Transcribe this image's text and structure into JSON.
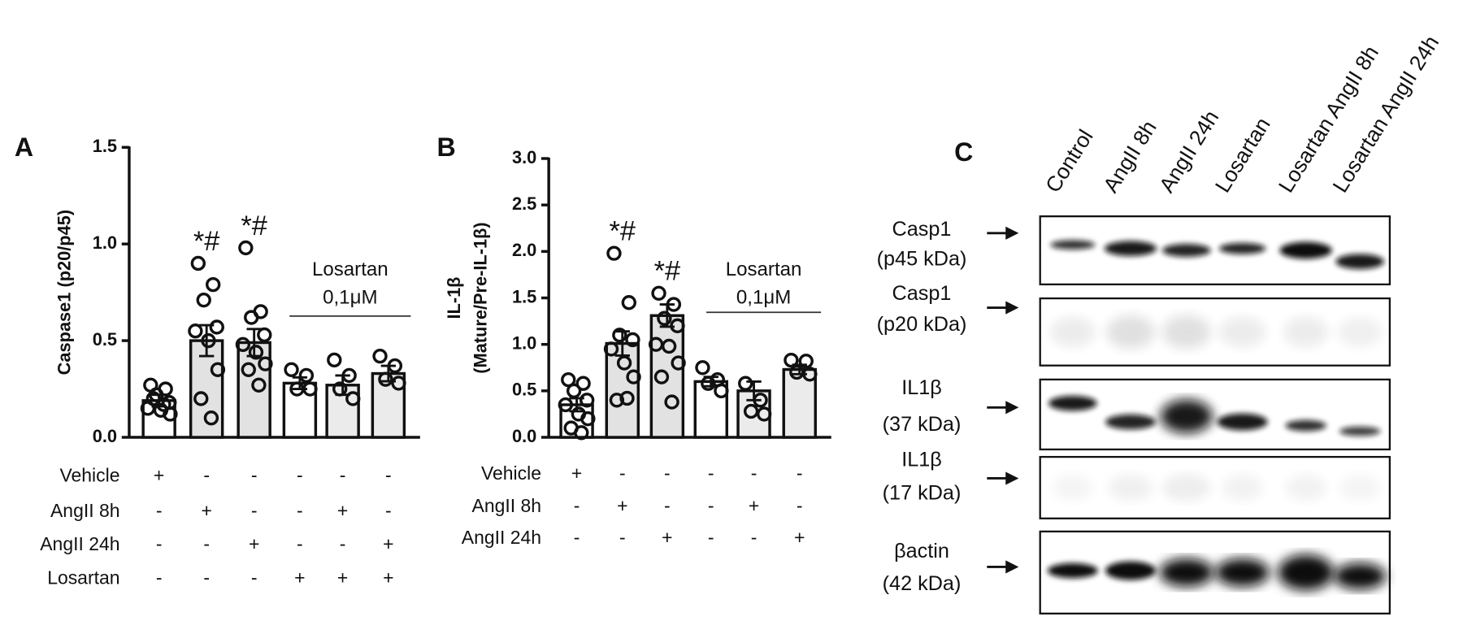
{
  "chart_data": [
    {
      "type": "bar",
      "panel": "A",
      "ylabel": [
        "Caspase1 (p20/p45)"
      ],
      "categories": [
        null,
        null,
        null,
        null,
        null,
        null
      ],
      "values": [
        0.19,
        0.5,
        0.49,
        0.28,
        0.27,
        0.33
      ],
      "errors": [
        0.03,
        0.08,
        0.07,
        0.03,
        0.05,
        0.04
      ],
      "points": [
        [
          0.27,
          0.25,
          0.22,
          0.18,
          0.15,
          0.14,
          0.12,
          0.2,
          0.17
        ],
        [
          0.9,
          0.79,
          0.71,
          0.57,
          0.55,
          0.5,
          0.35,
          0.2,
          0.1
        ],
        [
          0.98,
          0.65,
          0.62,
          0.53,
          0.48,
          0.44,
          0.38,
          0.35,
          0.27
        ],
        [
          0.35,
          0.32,
          0.25,
          0.25
        ],
        [
          0.4,
          0.32,
          0.25,
          0.2
        ],
        [
          0.42,
          0.37,
          0.3,
          0.28
        ]
      ],
      "colors": [
        "#ffffff",
        "#e2e2e2",
        "#e2e2e2",
        "#ffffff",
        "#ebebeb",
        "#ebebeb"
      ],
      "significance": [
        null,
        "*#",
        "*#",
        null,
        null,
        null
      ],
      "bracket": {
        "label": "Losartan",
        "sublabel": "0,1μM"
      },
      "ylim": [
        0,
        1.5
      ],
      "yticks": [
        {
          "value": 0,
          "label": "0.0"
        },
        0.5,
        {
          "value": 1,
          "label": "1.0"
        },
        1.5
      ],
      "conditions": [
        {
          "name": "Vehicle",
          "signs": [
            "+",
            "-",
            "-",
            "-",
            "-",
            "-"
          ]
        },
        {
          "name": "AngII 8h",
          "signs": [
            "-",
            "+",
            "-",
            "-",
            "+",
            "-"
          ]
        },
        {
          "name": "AngII 24h",
          "signs": [
            "-",
            "-",
            "+",
            "-",
            "-",
            "+"
          ]
        },
        {
          "name": "Losartan",
          "signs": [
            "-",
            "-",
            "-",
            "+",
            "+",
            "+"
          ]
        }
      ]
    },
    {
      "type": "bar",
      "panel": "B",
      "ylabel": [
        "IL-1β",
        "(Mature/Pre-IL-1β)"
      ],
      "categories": [
        null,
        null,
        null,
        null,
        null,
        null
      ],
      "values": [
        0.35,
        1.01,
        1.31,
        0.6,
        0.5,
        0.73
      ],
      "errors": [
        0.07,
        0.13,
        0.12,
        0.05,
        0.1,
        0.05
      ],
      "points": [
        [
          0.62,
          0.58,
          0.5,
          0.4,
          0.35,
          0.25,
          0.2,
          0.1,
          0.05
        ],
        [
          1.98,
          1.45,
          1.1,
          1.05,
          0.95,
          0.8,
          0.65,
          0.4,
          0.42
        ],
        [
          1.55,
          1.43,
          1.28,
          1.2,
          1.0,
          0.98,
          0.8,
          0.65,
          0.38
        ],
        [
          0.75,
          0.62,
          0.58,
          0.5
        ],
        [
          0.58,
          0.4,
          0.28,
          0.25
        ],
        [
          0.83,
          0.82,
          0.7,
          0.68
        ]
      ],
      "colors": [
        "#ffffff",
        "#e2e2e2",
        "#e2e2e2",
        "#ffffff",
        "#ebebeb",
        "#ebebeb"
      ],
      "significance": [
        null,
        "*#",
        "*#",
        null,
        null,
        null
      ],
      "bracket": {
        "label": "Losartan",
        "sublabel": "0,1μM"
      },
      "ylim": [
        0,
        3
      ],
      "yticks": [
        {
          "value": 0,
          "label": "0.0"
        },
        0.5,
        {
          "value": 1,
          "label": "1.0"
        },
        1.5,
        {
          "value": 2,
          "label": "2.0"
        },
        2.5,
        {
          "value": 3,
          "label": "3.0"
        }
      ],
      "conditions": [
        {
          "name": "Vehicle",
          "signs": [
            "+",
            "-",
            "-",
            "-",
            "-",
            "-"
          ]
        },
        {
          "name": "AngII 8h",
          "signs": [
            "-",
            "+",
            "-",
            "-",
            "+",
            "-"
          ]
        },
        {
          "name": "AngII 24h",
          "signs": [
            "-",
            "-",
            "+",
            "-",
            "-",
            "+"
          ]
        }
      ]
    }
  ],
  "blot": {
    "panel": "C",
    "lanes": [
      "Control",
      "AngII 8h",
      "AngII 24h",
      "Losartan",
      "Losartan  AngII 8h",
      "Losartan  AngII 24h"
    ],
    "rows": [
      {
        "name": "Casp1",
        "size": "(p45 kDa)"
      },
      {
        "name": "Casp1",
        "size": "(p20 kDa)"
      },
      {
        "name": "IL1β",
        "size": "(37 kDa)"
      },
      {
        "name": "IL1β",
        "size": "(17 kDa)"
      },
      {
        "name": "βactin",
        "size": "(42 kDa)"
      }
    ]
  }
}
